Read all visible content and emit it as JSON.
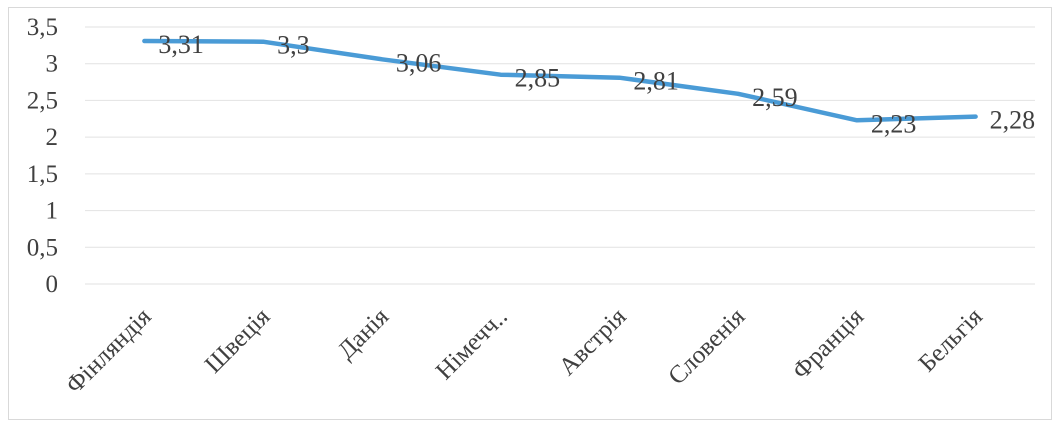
{
  "chart_data": {
    "type": "line",
    "categories": [
      "Фінляндія",
      "Швеція",
      "Данія",
      "Німечч..",
      "Австрія",
      "Словенія",
      "Франція",
      "Бельгія"
    ],
    "x_tick_labels": [
      "Фінляндія",
      "Швеція",
      "Данія",
      "Німечч..",
      "Австрія",
      "Словенія",
      "Франція",
      "Бельгія"
    ],
    "series": [
      {
        "values": [
          3.31,
          3.3,
          3.06,
          2.85,
          2.81,
          2.59,
          2.23,
          2.28
        ],
        "color": "#4a9bd6"
      }
    ],
    "data_labels": [
      "3,31",
      "3,3",
      "3,06",
      "2,85",
      "2,81",
      "2,59",
      "2,23",
      "2,28"
    ],
    "y_tick_labels": [
      "0",
      "0,5",
      "1",
      "1,5",
      "2",
      "2,5",
      "3",
      "3,5"
    ],
    "ylim": [
      0,
      3.5
    ],
    "y_major_unit": 0.5,
    "grid": true,
    "legend": "none"
  }
}
